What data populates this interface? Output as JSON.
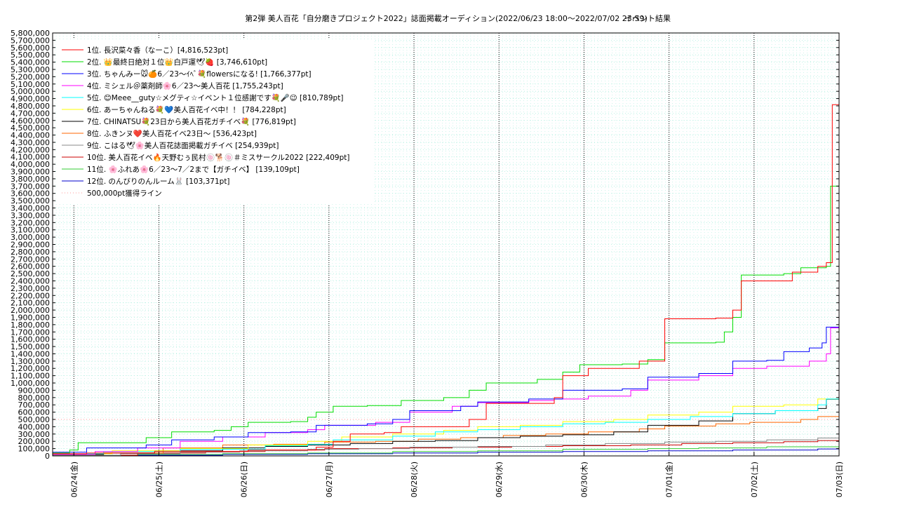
{
  "chart_data": {
    "type": "line",
    "title": "第2弾 美人百花「自分磨きプロジェクト2022」誌面掲載オーディション(2022/06/23 18:00～2022/07/02 23:59)",
    "subtitle": "イベント結果",
    "xlabel": "",
    "ylabel": "",
    "ylim": [
      0,
      5800000
    ],
    "y_ticks": [
      "0",
      "100,000",
      "200,000",
      "300,000",
      "400,000",
      "500,000",
      "600,000",
      "700,000",
      "800,000",
      "900,000",
      "1,000,000",
      "1,100,000",
      "1,200,000",
      "1,300,000",
      "1,400,000",
      "1,500,000",
      "1,600,000",
      "1,700,000",
      "1,800,000",
      "1,900,000",
      "2,000,000",
      "2,100,000",
      "2,200,000",
      "2,300,000",
      "2,400,000",
      "2,500,000",
      "2,600,000",
      "2,700,000",
      "2,800,000",
      "2,900,000",
      "3,000,000",
      "3,100,000",
      "3,200,000",
      "3,300,000",
      "3,400,000",
      "3,500,000",
      "3,600,000",
      "3,700,000",
      "3,800,000",
      "3,900,000",
      "4,000,000",
      "4,100,000",
      "4,200,000",
      "4,300,000",
      "4,400,000",
      "4,500,000",
      "4,600,000",
      "4,700,000",
      "4,800,000",
      "4,900,000",
      "5,000,000",
      "5,100,000",
      "5,200,000",
      "5,300,000",
      "5,400,000",
      "5,500,000",
      "5,600,000",
      "5,700,000",
      "5,800,000"
    ],
    "xlim": [
      0,
      9.25
    ],
    "x_ticks": [
      {
        "x": 0.25,
        "label": "06/24(金)"
      },
      {
        "x": 1.25,
        "label": "06/25(土)"
      },
      {
        "x": 2.25,
        "label": "06/26(日)"
      },
      {
        "x": 3.25,
        "label": "06/27(月)"
      },
      {
        "x": 4.25,
        "label": "06/28(火)"
      },
      {
        "x": 5.25,
        "label": "06/29(水)"
      },
      {
        "x": 6.25,
        "label": "06/30(木)"
      },
      {
        "x": 7.25,
        "label": "07/01(金)"
      },
      {
        "x": 8.25,
        "label": "07/02(土)"
      },
      {
        "x": 9.25,
        "label": "07/03(日)"
      }
    ],
    "grid": true,
    "legend_position": "top-left",
    "reference_line": {
      "value": 500000,
      "label": "500,000pt獲得ライン",
      "color": "#ff9999"
    },
    "series": [
      {
        "name": "1位. 長沢菜々香（なーこ）[4,816,523pt]",
        "color": "#ff0000",
        "points": [
          [
            0,
            30000
          ],
          [
            0.4,
            40000
          ],
          [
            1.2,
            60000
          ],
          [
            2.3,
            80000
          ],
          [
            3.1,
            120000
          ],
          [
            3.3,
            200000
          ],
          [
            3.5,
            300000
          ],
          [
            3.9,
            320000
          ],
          [
            4.1,
            400000
          ],
          [
            4.9,
            500000
          ],
          [
            5.1,
            720000
          ],
          [
            5.9,
            800000
          ],
          [
            6.0,
            1100000
          ],
          [
            6.3,
            1200000
          ],
          [
            6.9,
            1300000
          ],
          [
            7.2,
            1880000
          ],
          [
            7.8,
            1890000
          ],
          [
            8.0,
            2000000
          ],
          [
            8.1,
            2400000
          ],
          [
            8.7,
            2520000
          ],
          [
            9.0,
            2600000
          ],
          [
            9.1,
            2650000
          ],
          [
            9.17,
            4816523
          ],
          [
            9.25,
            4816523
          ]
        ]
      },
      {
        "name": "2位. 👑最終日絶対１位👑白戸運🕊🍓 [3,746,610pt]",
        "color": "#00dd00",
        "points": [
          [
            0,
            40000
          ],
          [
            0.2,
            80000
          ],
          [
            0.3,
            180000
          ],
          [
            0.9,
            180000
          ],
          [
            1.1,
            250000
          ],
          [
            1.4,
            330000
          ],
          [
            1.9,
            350000
          ],
          [
            2.1,
            400000
          ],
          [
            2.3,
            460000
          ],
          [
            2.8,
            470000
          ],
          [
            3.0,
            530000
          ],
          [
            3.1,
            600000
          ],
          [
            3.3,
            680000
          ],
          [
            3.7,
            690000
          ],
          [
            4.1,
            760000
          ],
          [
            4.6,
            800000
          ],
          [
            4.9,
            900000
          ],
          [
            5.1,
            1000000
          ],
          [
            5.7,
            1050000
          ],
          [
            6.0,
            1150000
          ],
          [
            6.2,
            1250000
          ],
          [
            6.7,
            1260000
          ],
          [
            7.0,
            1320000
          ],
          [
            7.2,
            1550000
          ],
          [
            7.8,
            1560000
          ],
          [
            7.9,
            1700000
          ],
          [
            8.0,
            1900000
          ],
          [
            8.1,
            2480000
          ],
          [
            8.6,
            2500000
          ],
          [
            8.8,
            2580000
          ],
          [
            9.1,
            2600000
          ],
          [
            9.15,
            3700000
          ],
          [
            9.25,
            3746610
          ]
        ]
      },
      {
        "name": "3位. ちゃんみー🐭🍊6／23〜ｲﾍﾞ💐flowersになる! [1,766,377pt]",
        "color": "#0000ff",
        "points": [
          [
            0,
            50000
          ],
          [
            0.4,
            110000
          ],
          [
            1.1,
            150000
          ],
          [
            1.4,
            220000
          ],
          [
            1.9,
            260000
          ],
          [
            2.3,
            320000
          ],
          [
            2.8,
            330000
          ],
          [
            3.1,
            420000
          ],
          [
            3.7,
            440000
          ],
          [
            4.0,
            500000
          ],
          [
            4.2,
            620000
          ],
          [
            4.8,
            680000
          ],
          [
            5.0,
            740000
          ],
          [
            5.6,
            780000
          ],
          [
            6.0,
            900000
          ],
          [
            6.7,
            920000
          ],
          [
            7.0,
            1080000
          ],
          [
            7.6,
            1130000
          ],
          [
            8.0,
            1300000
          ],
          [
            8.4,
            1310000
          ],
          [
            8.6,
            1430000
          ],
          [
            8.9,
            1480000
          ],
          [
            9.05,
            1550000
          ],
          [
            9.1,
            1766377
          ],
          [
            9.25,
            1766377
          ]
        ]
      },
      {
        "name": "4位. ミシェル＠薬剤師🌸6／23〜美人百花 [1,755,243pt]",
        "color": "#ff00ff",
        "points": [
          [
            0,
            20000
          ],
          [
            0.5,
            60000
          ],
          [
            1.0,
            110000
          ],
          [
            1.5,
            200000
          ],
          [
            2.0,
            260000
          ],
          [
            2.5,
            320000
          ],
          [
            3.0,
            360000
          ],
          [
            3.2,
            420000
          ],
          [
            3.8,
            460000
          ],
          [
            4.2,
            600000
          ],
          [
            4.7,
            680000
          ],
          [
            5.0,
            730000
          ],
          [
            5.6,
            760000
          ],
          [
            5.9,
            780000
          ],
          [
            6.3,
            820000
          ],
          [
            6.8,
            900000
          ],
          [
            7.0,
            1040000
          ],
          [
            7.6,
            1100000
          ],
          [
            8.0,
            1200000
          ],
          [
            8.4,
            1230000
          ],
          [
            8.9,
            1300000
          ],
          [
            9.1,
            1400000
          ],
          [
            9.15,
            1755243
          ],
          [
            9.25,
            1755243
          ]
        ]
      },
      {
        "name": "5位. 😊Meee__guty☆メグティ☆イベント１位感謝です💐🎤😉 [810,789pt]",
        "color": "#00ffff",
        "points": [
          [
            0,
            30000
          ],
          [
            0.6,
            60000
          ],
          [
            1.5,
            90000
          ],
          [
            2.5,
            140000
          ],
          [
            3.0,
            160000
          ],
          [
            3.3,
            220000
          ],
          [
            4.0,
            270000
          ],
          [
            4.5,
            330000
          ],
          [
            5.0,
            360000
          ],
          [
            5.5,
            400000
          ],
          [
            6.0,
            440000
          ],
          [
            6.5,
            460000
          ],
          [
            7.0,
            500000
          ],
          [
            7.5,
            540000
          ],
          [
            8.0,
            580000
          ],
          [
            8.5,
            620000
          ],
          [
            9.0,
            700000
          ],
          [
            9.1,
            780000
          ],
          [
            9.25,
            810789
          ]
        ]
      },
      {
        "name": "6位. あーちゃんねる💐💙美人百花イベ中！！ [784,228pt]",
        "color": "#ffff00",
        "points": [
          [
            0,
            30000
          ],
          [
            0.7,
            70000
          ],
          [
            1.5,
            100000
          ],
          [
            2.3,
            150000
          ],
          [
            3.0,
            200000
          ],
          [
            3.4,
            260000
          ],
          [
            4.0,
            300000
          ],
          [
            4.6,
            350000
          ],
          [
            5.0,
            400000
          ],
          [
            5.5,
            420000
          ],
          [
            6.0,
            470000
          ],
          [
            6.6,
            500000
          ],
          [
            7.0,
            560000
          ],
          [
            7.6,
            600000
          ],
          [
            8.0,
            680000
          ],
          [
            8.6,
            700000
          ],
          [
            9.0,
            780000
          ],
          [
            9.25,
            784228
          ]
        ]
      },
      {
        "name": "7位. CHINATSU💐23日から美人百花ガチイベ💐 [776,819pt]",
        "color": "#000000",
        "points": [
          [
            0,
            20000
          ],
          [
            0.6,
            40000
          ],
          [
            1.2,
            70000
          ],
          [
            2.0,
            110000
          ],
          [
            2.5,
            130000
          ],
          [
            3.0,
            150000
          ],
          [
            3.5,
            170000
          ],
          [
            4.0,
            200000
          ],
          [
            4.5,
            210000
          ],
          [
            5.0,
            250000
          ],
          [
            5.5,
            270000
          ],
          [
            6.0,
            290000
          ],
          [
            6.6,
            330000
          ],
          [
            7.0,
            420000
          ],
          [
            7.6,
            480000
          ],
          [
            8.0,
            580000
          ],
          [
            8.5,
            620000
          ],
          [
            9.0,
            650000
          ],
          [
            9.1,
            776819
          ],
          [
            9.25,
            776819
          ]
        ]
      },
      {
        "name": "8位. ふきンヌ❤️美人百花イベ23日〜 [536,423pt]",
        "color": "#ff6600",
        "points": [
          [
            0,
            20000
          ],
          [
            0.6,
            40000
          ],
          [
            1.3,
            110000
          ],
          [
            2.0,
            150000
          ],
          [
            2.6,
            160000
          ],
          [
            3.2,
            190000
          ],
          [
            3.8,
            200000
          ],
          [
            4.3,
            230000
          ],
          [
            4.8,
            250000
          ],
          [
            5.3,
            280000
          ],
          [
            5.8,
            300000
          ],
          [
            6.3,
            330000
          ],
          [
            6.9,
            370000
          ],
          [
            7.2,
            410000
          ],
          [
            7.8,
            440000
          ],
          [
            8.2,
            460000
          ],
          [
            8.8,
            500000
          ],
          [
            9.0,
            540000
          ],
          [
            9.25,
            536423
          ]
        ]
      },
      {
        "name": "9位. こはる🕊🌸美人百花誌面掲載ガチイベ [254,939pt]",
        "color": "#888888",
        "points": [
          [
            0,
            10000
          ],
          [
            0.8,
            30000
          ],
          [
            1.5,
            50000
          ],
          [
            2.2,
            70000
          ],
          [
            3.0,
            90000
          ],
          [
            3.6,
            100000
          ],
          [
            4.2,
            120000
          ],
          [
            5.0,
            130000
          ],
          [
            5.8,
            150000
          ],
          [
            6.5,
            170000
          ],
          [
            7.2,
            190000
          ],
          [
            7.8,
            200000
          ],
          [
            8.4,
            220000
          ],
          [
            9.0,
            245000
          ],
          [
            9.25,
            254939
          ]
        ]
      },
      {
        "name": "10位. 美人百花イベ🔥天野むぅ民村🍥🐕🍥＃ミスサークル2022 [222,409pt]",
        "color": "#cc0000",
        "points": [
          [
            0,
            10000
          ],
          [
            1.0,
            40000
          ],
          [
            1.8,
            60000
          ],
          [
            2.5,
            80000
          ],
          [
            3.2,
            100000
          ],
          [
            4.0,
            110000
          ],
          [
            4.7,
            120000
          ],
          [
            5.4,
            130000
          ],
          [
            6.0,
            140000
          ],
          [
            6.8,
            150000
          ],
          [
            7.4,
            170000
          ],
          [
            8.0,
            180000
          ],
          [
            8.6,
            195000
          ],
          [
            9.0,
            210000
          ],
          [
            9.25,
            222409
          ]
        ]
      },
      {
        "name": "11位. 🌸ふれあ🌸6／23〜7／2まで【ガチイベ】 [139,109pt]",
        "color": "#33cc33",
        "points": [
          [
            0,
            10000
          ],
          [
            1.0,
            20000
          ],
          [
            2.0,
            30000
          ],
          [
            3.0,
            40000
          ],
          [
            4.0,
            60000
          ],
          [
            5.0,
            70000
          ],
          [
            6.0,
            90000
          ],
          [
            7.0,
            100000
          ],
          [
            7.6,
            110000
          ],
          [
            8.4,
            125000
          ],
          [
            9.25,
            139109
          ]
        ]
      },
      {
        "name": "12位. のんびりのんルーム🐰 [103,371pt]",
        "color": "#0000cc",
        "points": [
          [
            0,
            5000
          ],
          [
            1.0,
            10000
          ],
          [
            2.0,
            20000
          ],
          [
            3.0,
            30000
          ],
          [
            4.0,
            40000
          ],
          [
            5.0,
            50000
          ],
          [
            6.0,
            60000
          ],
          [
            7.0,
            70000
          ],
          [
            8.0,
            80000
          ],
          [
            9.0,
            95000
          ],
          [
            9.25,
            103371
          ]
        ]
      }
    ]
  }
}
